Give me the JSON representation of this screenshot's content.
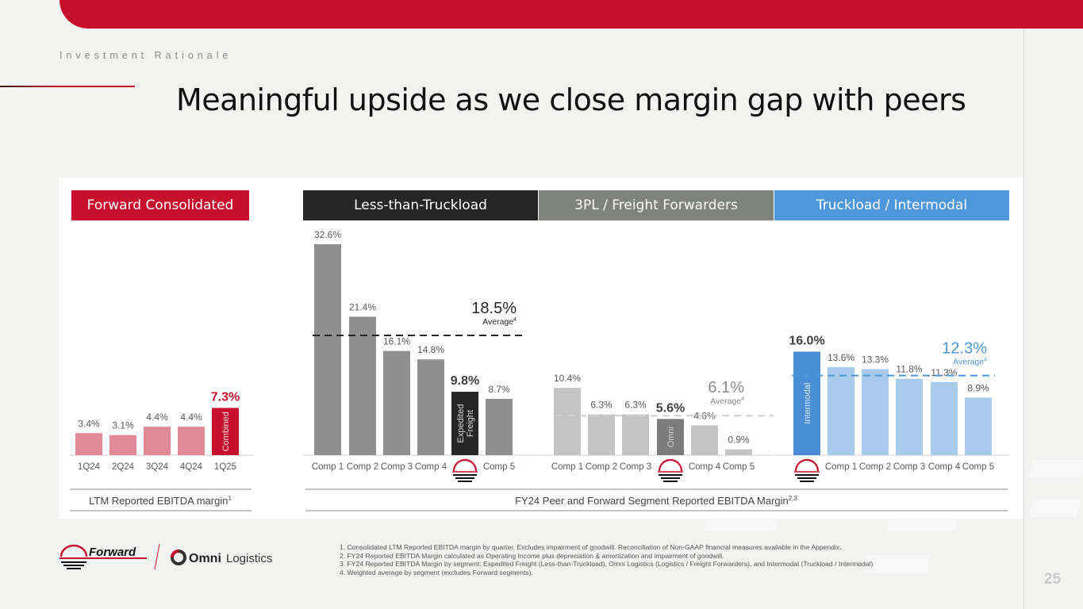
{
  "header": {
    "section_label": "Investment Rationale",
    "title": "Meaningful upside as we close margin gap with peers",
    "page_number": "25"
  },
  "colors": {
    "brand_red": "#c8102e",
    "forward_bar": "#e08a97",
    "ltl_header": "#262626",
    "ltl_bar": "#8f8f8f",
    "tpl_header": "#80827e",
    "tpl_bar": "#c4c4c4",
    "omni_bar": "#7c7c7c",
    "tl_header": "#4f97db",
    "tl_bar": "#a8cbeb",
    "intermodal_bar": "#4a8fd6"
  },
  "groups": {
    "forward": {
      "header": "Forward Consolidated",
      "footer_label": "LTM Reported EBITDA margin",
      "footer_sup": "1"
    },
    "ltl": {
      "header": "Less-than-Truckload"
    },
    "tpl": {
      "header": "3PL / Freight Forwarders"
    },
    "tl": {
      "header": "Truckload / Intermodal"
    },
    "peer_footer_label": "FY24 Peer and Forward Segment Reported EBITDA Margin",
    "peer_footer_sup": "2,3"
  },
  "chart_data": [
    {
      "type": "bar",
      "title": "Forward Consolidated",
      "xlabel": "LTM Reported EBITDA margin",
      "categories": [
        "1Q24",
        "2Q24",
        "3Q24",
        "4Q24",
        "1Q25"
      ],
      "values": [
        3.4,
        3.1,
        4.4,
        4.4,
        7.3
      ],
      "labels": [
        "3.4%",
        "3.1%",
        "4.4%",
        "4.4%",
        "7.3%"
      ],
      "highlight_index": 4,
      "highlight_inner_label": "Combined",
      "unit": "%"
    },
    {
      "type": "bar",
      "title": "Less-than-Truckload",
      "categories": [
        "Comp 1",
        "Comp 2",
        "Comp 3",
        "Comp 4",
        "Forward",
        "Comp 5"
      ],
      "values": [
        32.6,
        21.4,
        16.1,
        14.8,
        9.8,
        8.7
      ],
      "labels": [
        "32.6%",
        "21.4%",
        "16.1%",
        "14.8%",
        "9.8%",
        "8.7%"
      ],
      "highlight_index": 4,
      "highlight_inner_label": "Expedited Freight",
      "average": 18.5,
      "average_label": "18.5%",
      "average_caption": "Average",
      "average_sup": "4",
      "unit": "%"
    },
    {
      "type": "bar",
      "title": "3PL / Freight Forwarders",
      "categories": [
        "Comp 1",
        "Comp 2",
        "Comp 3",
        "Forward",
        "Comp 4",
        "Comp 5"
      ],
      "values": [
        10.4,
        6.3,
        6.3,
        5.6,
        4.6,
        0.9
      ],
      "labels": [
        "10.4%",
        "6.3%",
        "6.3%",
        "5.6%",
        "4.6%",
        "0.9%"
      ],
      "highlight_index": 3,
      "highlight_inner_label": "Omni",
      "average": 6.1,
      "average_label": "6.1%",
      "average_caption": "Average",
      "average_sup": "4",
      "unit": "%"
    },
    {
      "type": "bar",
      "title": "Truckload / Intermodal",
      "categories": [
        "Forward",
        "Comp 1",
        "Comp 2",
        "Comp 3",
        "Comp 4",
        "Comp 5"
      ],
      "values": [
        16.0,
        13.6,
        13.3,
        11.8,
        11.3,
        8.9
      ],
      "labels": [
        "16.0%",
        "13.6%",
        "13.3%",
        "11.8%",
        "11.3%",
        "8.9%"
      ],
      "highlight_index": 0,
      "highlight_inner_label": "Intermodal",
      "average": 12.3,
      "average_label": "12.3%",
      "average_caption": "Average",
      "average_sup": "4",
      "unit": "%"
    }
  ],
  "footnotes": [
    "1. Consolidated LTM Reported EBITDA margin by quarter. Excludes impairment of goodwill. Reconciliation of Non-GAAP financial measures available in the Appendix.",
    "2. FY24 Reported EBITDA Margin calculated as Operating Income plus depreciation & amortization and impairment of goodwill.",
    "3. FY24 Reported EBITDA Margin by segment: Expedited Freight (Less-than-Truckload), Omni Logistics (Logistics / Freight Forwarders), and Intermodal (Truckload / Intermodal)",
    "4. Weighted average by segment (excludes Forward segments)."
  ],
  "logos": {
    "forward_name": "Forward",
    "omni_bold": "Omni",
    "omni_light": "Logistics"
  }
}
